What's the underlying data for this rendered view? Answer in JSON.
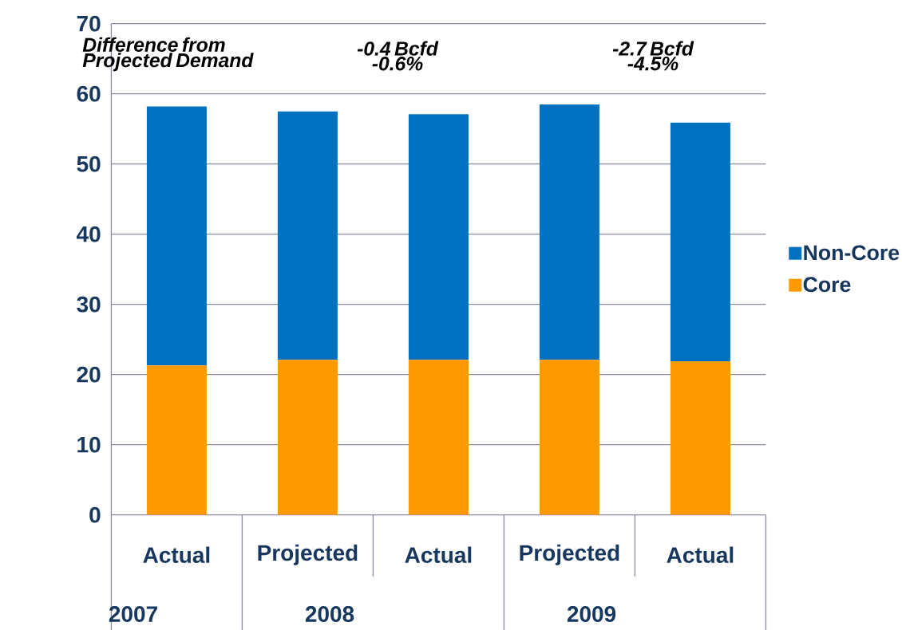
{
  "chart_data": {
    "type": "bar",
    "stacked": true,
    "categories": [
      "Actual",
      "Projected",
      "Actual",
      "Projected",
      "Actual"
    ],
    "series": [
      {
        "name": "Core",
        "color": "#ff9900",
        "values": [
          21.3,
          22.1,
          22.1,
          22.1,
          21.9
        ]
      },
      {
        "name": "Non-Core",
        "color": "#0070c0",
        "values": [
          36.9,
          35.4,
          35.0,
          36.4,
          34.0
        ]
      }
    ],
    "ylim": [
      0,
      70
    ],
    "yticks": [
      0,
      10,
      20,
      30,
      40,
      50,
      60,
      70
    ],
    "grid": "y",
    "legend": "right",
    "annotations": [
      "Difference from Projected Demand",
      "-0.4 Bcfd -0.6%",
      "-2.7 Bcfd -4.5%",
      "2007",
      "2008",
      "2009"
    ]
  }
}
